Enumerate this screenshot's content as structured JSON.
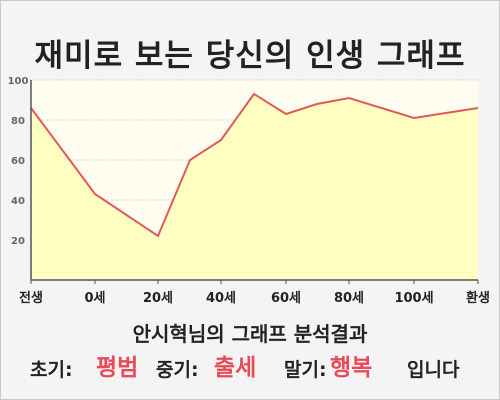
{
  "title": "재미로 보는 당신의 인생 그래프",
  "analysis_title": "안시혁님의 그래프 분석결과",
  "result": {
    "early_label": "초기:",
    "early_value": "평범",
    "mid_label": "중기:",
    "mid_value": "출세",
    "late_label": "말기:",
    "late_value": "행복",
    "suffix": "입니다"
  },
  "colors": {
    "line": "#e05a5a",
    "fill": "#ffffc2",
    "highlight": "#e84b57"
  },
  "chart_data": {
    "type": "area",
    "xlabel": "",
    "ylabel": "",
    "ylim": [
      0,
      100
    ],
    "yticks": [
      20,
      40,
      60,
      80,
      100
    ],
    "x_tick_labels": [
      "전생",
      "0세",
      "20세",
      "40세",
      "60세",
      "80세",
      "100세",
      "환생"
    ],
    "grid": true,
    "series": [
      {
        "x": [
          "전생",
          "0세",
          "20세",
          "30세",
          "40세",
          "50세",
          "60세",
          "70세",
          "80세",
          "100세",
          "환생"
        ],
        "values": [
          86,
          43,
          22,
          60,
          70,
          93,
          83,
          88,
          91,
          81,
          86
        ]
      }
    ]
  }
}
